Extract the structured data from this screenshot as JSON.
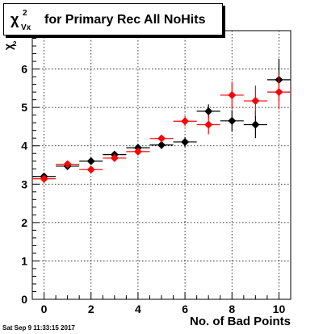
{
  "title": {
    "symbol": "χ",
    "superscript": "2",
    "subscript": "Vx",
    "text": "for Primary Rec All NoHits"
  },
  "timestamp": "Sat Sep  9 11:33:15 2017",
  "chart_data": {
    "type": "scatter",
    "title": "χ²Vx for Primary Rec All NoHits",
    "xlabel": "No. of Bad Points",
    "ylabel": "χ²Vx",
    "xlim": [
      -0.5,
      10.5
    ],
    "ylim": [
      0,
      7
    ],
    "xticks": [
      0,
      2,
      4,
      6,
      8,
      10
    ],
    "yticks": [
      0,
      1,
      2,
      3,
      4,
      5,
      6
    ],
    "grid": true,
    "series": [
      {
        "color": "#000000",
        "x": [
          0,
          1,
          2,
          3,
          4,
          5,
          6,
          7,
          8,
          9,
          10
        ],
        "y": [
          3.2,
          3.47,
          3.6,
          3.77,
          3.95,
          4.02,
          4.1,
          4.9,
          4.65,
          4.55,
          5.72
        ],
        "yerr": [
          0.05,
          0.05,
          0.06,
          0.07,
          0.08,
          0.1,
          0.13,
          0.18,
          0.28,
          0.35,
          0.55
        ]
      },
      {
        "color": "#ff0000",
        "x": [
          0,
          1,
          2,
          3,
          4,
          5,
          6,
          7,
          8,
          9,
          10
        ],
        "y": [
          3.14,
          3.52,
          3.38,
          3.68,
          3.85,
          4.19,
          4.64,
          4.55,
          5.32,
          5.17,
          5.4
        ],
        "yerr": [
          0.05,
          0.05,
          0.06,
          0.07,
          0.08,
          0.1,
          0.13,
          0.25,
          0.35,
          0.4,
          0.45
        ]
      }
    ]
  }
}
